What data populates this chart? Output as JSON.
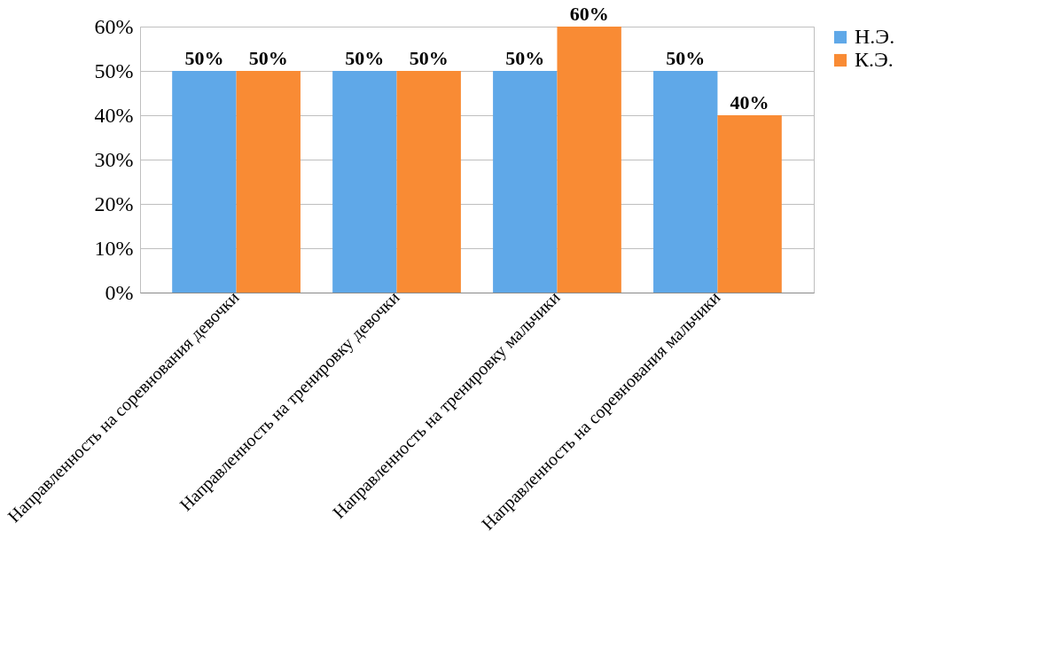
{
  "chart_data": {
    "type": "bar",
    "categories": [
      "Направленность на соревнования девочки",
      "Направленность на тренировку девочки",
      "Направленность на тренировку мальчики",
      "Направленность на соревнования мальчики"
    ],
    "series": [
      {
        "name": "Н.Э.",
        "color": "#5fa8e8",
        "values": [
          50,
          50,
          50,
          50
        ],
        "value_labels": [
          "50%",
          "50%",
          "50%",
          "50%"
        ]
      },
      {
        "name": "К.Э.",
        "color": "#f98b34",
        "values": [
          50,
          50,
          60,
          40
        ],
        "value_labels": [
          "50%",
          "50%",
          "60%",
          "40%"
        ]
      }
    ],
    "ylim": [
      0,
      60
    ],
    "yticks": [
      {
        "value": 0,
        "label": "0%"
      },
      {
        "value": 10,
        "label": "10%"
      },
      {
        "value": 20,
        "label": "20%"
      },
      {
        "value": 30,
        "label": "30%"
      },
      {
        "value": 40,
        "label": "40%"
      },
      {
        "value": 50,
        "label": "50%"
      },
      {
        "value": 60,
        "label": "60%"
      }
    ],
    "grid": "y",
    "legend": "right"
  }
}
